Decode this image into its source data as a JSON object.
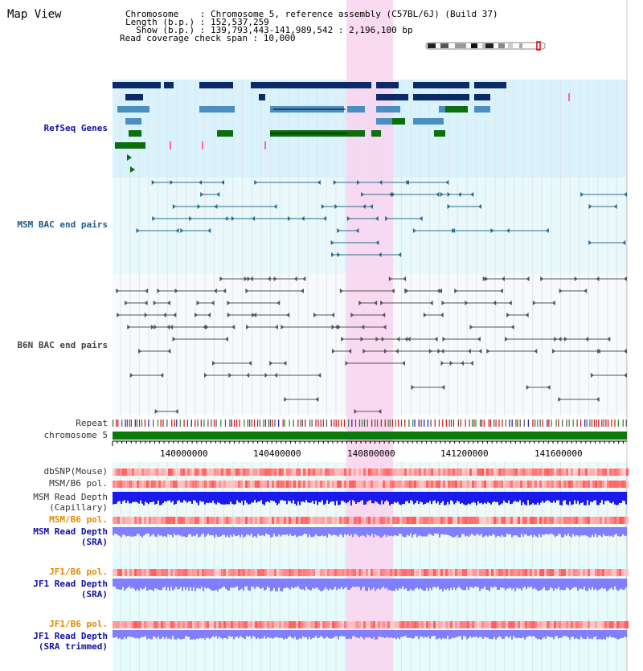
{
  "header": {
    "title": "Map View",
    "chromosome_line": "Chromosome    : Chromosome 5, reference assembly (C57BL/6J) (Build 37)",
    "length_line": "Length (b.p.) : 152,537,259",
    "show_line": "  Show (b.p.) : 139,793,443-141,989,542 : 2,196,100 bp",
    "coverage_line": "Read coverage check span : 10,000"
  },
  "tracks": {
    "refseq": "RefSeq Genes",
    "msm_bac": "MSM BAC end pairs",
    "b6n_bac": "B6N BAC end pairs",
    "repeat": "Repeat",
    "chromosome": "chromosome 5",
    "dbsnp": "dbSNP(Mouse)",
    "msm_b6_pol_1": "MSM/B6 pol.",
    "msm_depth_cap_1": "MSM Read Depth",
    "msm_depth_cap_2": "(Capillary)",
    "msm_b6_pol_2": "MSM/B6 pol.",
    "msm_depth_sra_1": "MSM Read Depth",
    "msm_depth_sra_2": "(SRA)",
    "jf1_b6_pol_1": "JF1/B6 pol.",
    "jf1_depth_sra_1": "JF1 Read Depth",
    "jf1_depth_sra_2": "(SRA)",
    "jf1_b6_pol_2": "JF1/B6 pol.",
    "jf1_depth_trim_1": "JF1 Read Depth",
    "jf1_depth_trim_2": "(SRA trimmed)"
  },
  "axis": {
    "ticks": [
      "140000000",
      "140400000",
      "140800000",
      "141200000",
      "141600000"
    ]
  },
  "colors": {
    "refseq_bg": "#d9f2fb",
    "bac_bg": "#e8f8fb",
    "highlight": "#f9d4ee",
    "gene_dark": "#0b2a66",
    "gene_mid": "#4a8fbf",
    "gene_green": "#0d6e0d",
    "chrom_green": "#0a7a0a",
    "msm_pair": "#2a6b8c",
    "b6n_pair": "#555555",
    "depth_blue": "#1a1aee",
    "depth_light": "#7f7fff",
    "pol_red": "#f05050"
  }
}
